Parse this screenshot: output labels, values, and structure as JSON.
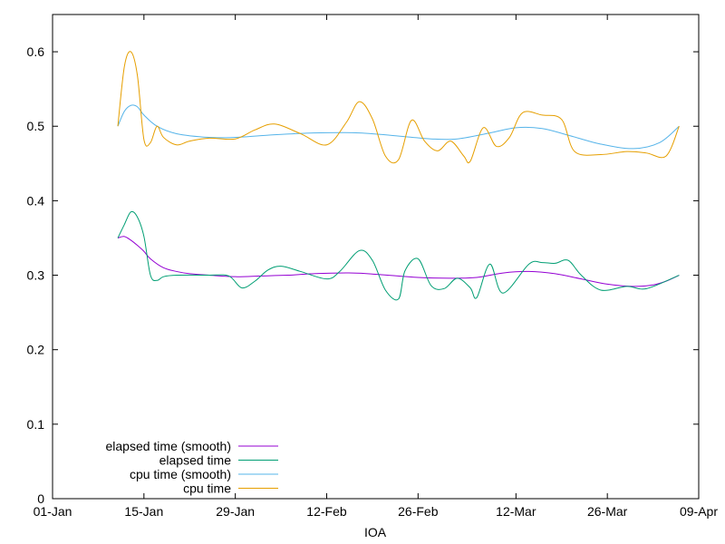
{
  "chart_data": {
    "type": "line",
    "title": "",
    "xlabel": "IOA",
    "ylabel": "",
    "x_tick_labels": [
      "01-Jan",
      "15-Jan",
      "29-Jan",
      "12-Feb",
      "26-Feb",
      "12-Mar",
      "26-Mar",
      "09-Apr"
    ],
    "x_tick_dates": [
      "2024-01-01",
      "2024-01-15",
      "2024-01-29",
      "2024-02-12",
      "2024-02-26",
      "2024-03-12",
      "2024-03-26",
      "2024-04-09"
    ],
    "xlim": [
      "2024-01-01",
      "2024-04-09"
    ],
    "y_tick_labels": [
      "0",
      "0.1",
      "0.2",
      "0.3",
      "0.4",
      "0.5",
      "0.6"
    ],
    "ylim": [
      0,
      0.65
    ],
    "grid": false,
    "legend_position": "bottom-left",
    "series": [
      {
        "name": "elapsed time (smooth)",
        "color": "#9400d3",
        "x": [
          "2024-01-11",
          "2024-01-12",
          "2024-01-13",
          "2024-01-14",
          "2024-01-15",
          "2024-01-16",
          "2024-01-18",
          "2024-01-20",
          "2024-01-22",
          "2024-01-25",
          "2024-01-29",
          "2024-02-02",
          "2024-02-06",
          "2024-02-10",
          "2024-02-16",
          "2024-02-20",
          "2024-02-26",
          "2024-03-02",
          "2024-03-06",
          "2024-03-10",
          "2024-03-14",
          "2024-03-18",
          "2024-03-22",
          "2024-03-26",
          "2024-03-30",
          "2024-04-02",
          "2024-04-04",
          "2024-04-06"
        ],
        "values": [
          0.35,
          0.352,
          0.347,
          0.34,
          0.332,
          0.322,
          0.31,
          0.305,
          0.302,
          0.3,
          0.298,
          0.299,
          0.3,
          0.302,
          0.303,
          0.301,
          0.297,
          0.296,
          0.297,
          0.303,
          0.305,
          0.302,
          0.295,
          0.288,
          0.285,
          0.287,
          0.292,
          0.3
        ]
      },
      {
        "name": "elapsed time",
        "color": "#009e73",
        "x": [
          "2024-01-11",
          "2024-01-12",
          "2024-01-13",
          "2024-01-14",
          "2024-01-15",
          "2024-01-16",
          "2024-01-17",
          "2024-01-18",
          "2024-01-20",
          "2024-01-25",
          "2024-01-28",
          "2024-01-30",
          "2024-02-01",
          "2024-02-03",
          "2024-02-05",
          "2024-02-08",
          "2024-02-12",
          "2024-02-14",
          "2024-02-17",
          "2024-02-19",
          "2024-02-21",
          "2024-02-23",
          "2024-02-24",
          "2024-02-26",
          "2024-02-28",
          "2024-03-01",
          "2024-03-03",
          "2024-03-05",
          "2024-03-06",
          "2024-03-08",
          "2024-03-10",
          "2024-03-14",
          "2024-03-16",
          "2024-03-18",
          "2024-03-20",
          "2024-03-22",
          "2024-03-25",
          "2024-03-29",
          "2024-04-01",
          "2024-04-06"
        ],
        "values": [
          0.35,
          0.368,
          0.385,
          0.378,
          0.352,
          0.3,
          0.293,
          0.298,
          0.3,
          0.3,
          0.299,
          0.283,
          0.292,
          0.307,
          0.312,
          0.305,
          0.295,
          0.305,
          0.333,
          0.32,
          0.28,
          0.268,
          0.306,
          0.322,
          0.286,
          0.282,
          0.296,
          0.283,
          0.27,
          0.315,
          0.276,
          0.315,
          0.317,
          0.316,
          0.32,
          0.3,
          0.28,
          0.285,
          0.282,
          0.3
        ]
      },
      {
        "name": "cpu time (smooth)",
        "color": "#56b4e9",
        "x": [
          "2024-01-11",
          "2024-01-12",
          "2024-01-13",
          "2024-01-14",
          "2024-01-15",
          "2024-01-17",
          "2024-01-20",
          "2024-01-25",
          "2024-01-29",
          "2024-02-03",
          "2024-02-10",
          "2024-02-17",
          "2024-02-24",
          "2024-02-28",
          "2024-03-03",
          "2024-03-08",
          "2024-03-12",
          "2024-03-16",
          "2024-03-20",
          "2024-03-25",
          "2024-03-30",
          "2024-04-03",
          "2024-04-06"
        ],
        "values": [
          0.5,
          0.52,
          0.528,
          0.526,
          0.515,
          0.5,
          0.49,
          0.485,
          0.485,
          0.488,
          0.491,
          0.491,
          0.486,
          0.483,
          0.483,
          0.491,
          0.498,
          0.497,
          0.488,
          0.476,
          0.47,
          0.478,
          0.5
        ]
      },
      {
        "name": "cpu time",
        "color": "#e69f00",
        "x": [
          "2024-01-11",
          "2024-01-12",
          "2024-01-13",
          "2024-01-14",
          "2024-01-15",
          "2024-01-16",
          "2024-01-17",
          "2024-01-18",
          "2024-01-20",
          "2024-01-22",
          "2024-01-25",
          "2024-01-29",
          "2024-02-01",
          "2024-02-04",
          "2024-02-08",
          "2024-02-12",
          "2024-02-15",
          "2024-02-17",
          "2024-02-19",
          "2024-02-21",
          "2024-02-23",
          "2024-02-25",
          "2024-02-27",
          "2024-02-29",
          "2024-03-02",
          "2024-03-04",
          "2024-03-05",
          "2024-03-07",
          "2024-03-09",
          "2024-03-11",
          "2024-03-13",
          "2024-03-16",
          "2024-03-19",
          "2024-03-21",
          "2024-03-25",
          "2024-03-29",
          "2024-04-01",
          "2024-04-04",
          "2024-04-06"
        ],
        "values": [
          0.5,
          0.58,
          0.6,
          0.568,
          0.482,
          0.478,
          0.5,
          0.485,
          0.475,
          0.48,
          0.484,
          0.483,
          0.495,
          0.503,
          0.49,
          0.475,
          0.505,
          0.533,
          0.51,
          0.46,
          0.455,
          0.508,
          0.48,
          0.467,
          0.48,
          0.46,
          0.453,
          0.498,
          0.473,
          0.485,
          0.518,
          0.515,
          0.509,
          0.466,
          0.462,
          0.466,
          0.464,
          0.46,
          0.5
        ]
      }
    ]
  }
}
